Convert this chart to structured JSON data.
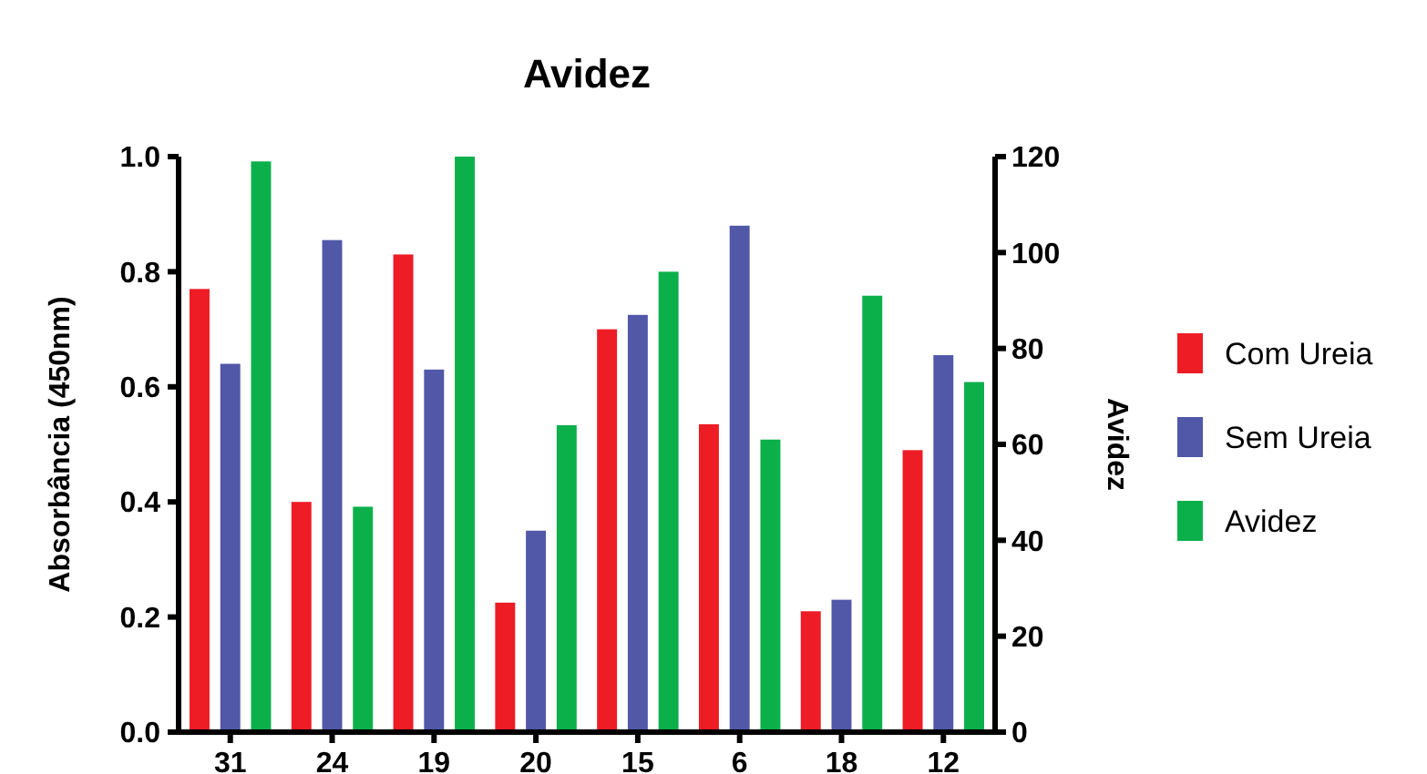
{
  "chart_data": {
    "type": "bar",
    "title": "Avidez",
    "ylabel": "Absorbância (450nm)",
    "y2label": "Avidez",
    "categories": [
      "31",
      "24",
      "19",
      "20",
      "15",
      "6",
      "18",
      "12"
    ],
    "series": [
      {
        "name": "Com Ureia",
        "color": "#ee1c25",
        "values": [
          0.77,
          0.4,
          0.83,
          0.225,
          0.7,
          0.535,
          0.21,
          0.49
        ]
      },
      {
        "name": "Sem Ureia",
        "color": "#5158a8",
        "values": [
          0.64,
          0.855,
          0.63,
          0.35,
          0.725,
          0.88,
          0.23,
          0.655
        ]
      },
      {
        "name": "Avidez",
        "color": "#0bb04b",
        "axis": "y2",
        "values": [
          119,
          47,
          120,
          64,
          96,
          61,
          91,
          73
        ]
      }
    ],
    "ylim": [
      0,
      1
    ],
    "yticks": [
      {
        "value": 0,
        "label": "0.0"
      },
      0.2,
      0.4,
      0.6,
      0.8,
      {
        "value": 1,
        "label": "1.0"
      }
    ],
    "y2lim": [
      0,
      120
    ],
    "y2ticks": [
      0,
      20,
      40,
      60,
      80,
      100,
      120
    ],
    "grid": false,
    "legend": "right"
  }
}
